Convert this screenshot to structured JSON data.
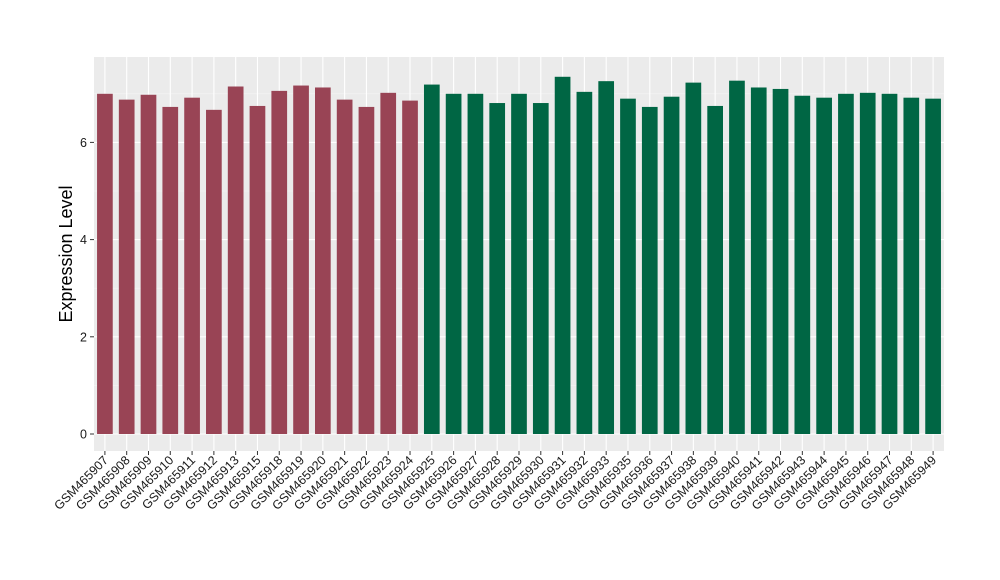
{
  "chart_data": {
    "type": "bar",
    "title": "",
    "xlabel": "",
    "ylabel": "Expression Level",
    "ylim": [
      0,
      7.7
    ],
    "yticks": [
      0,
      2,
      4,
      6
    ],
    "grid": true,
    "background": "#ebebeb",
    "gridline_color": "#ffffff",
    "categories": [
      "GSM465907",
      "GSM465908",
      "GSM465909",
      "GSM465910",
      "GSM465911",
      "GSM465912",
      "GSM465913",
      "GSM465915",
      "GSM465918",
      "GSM465919",
      "GSM465920",
      "GSM465921",
      "GSM465922",
      "GSM465923",
      "GSM465924",
      "GSM465925",
      "GSM465926",
      "GSM465927",
      "GSM465928",
      "GSM465929",
      "GSM465930",
      "GSM465931",
      "GSM465932",
      "GSM465933",
      "GSM465935",
      "GSM465936",
      "GSM465937",
      "GSM465938",
      "GSM465939",
      "GSM465940",
      "GSM465941",
      "GSM465942",
      "GSM465943",
      "GSM465944",
      "GSM465945",
      "GSM465946",
      "GSM465947",
      "GSM465948",
      "GSM465949"
    ],
    "values": [
      7.0,
      6.88,
      6.98,
      6.73,
      6.92,
      6.67,
      7.15,
      6.75,
      7.06,
      7.17,
      7.13,
      6.88,
      6.73,
      7.02,
      6.86,
      7.19,
      7.0,
      7.0,
      6.81,
      7.0,
      6.81,
      7.35,
      7.04,
      7.26,
      6.9,
      6.73,
      6.94,
      7.23,
      6.75,
      7.27,
      7.13,
      7.1,
      6.96,
      6.92,
      7.0,
      7.02,
      7.0,
      6.92,
      6.9
    ],
    "bar_colors": [
      "#994455",
      "#994455",
      "#994455",
      "#994455",
      "#994455",
      "#994455",
      "#994455",
      "#994455",
      "#994455",
      "#994455",
      "#994455",
      "#994455",
      "#994455",
      "#994455",
      "#994455",
      "#006644",
      "#006644",
      "#006644",
      "#006644",
      "#006644",
      "#006644",
      "#006644",
      "#006644",
      "#006644",
      "#006644",
      "#006644",
      "#006644",
      "#006644",
      "#006644",
      "#006644",
      "#006644",
      "#006644",
      "#006644",
      "#006644",
      "#006644",
      "#006644",
      "#006644",
      "#006644",
      "#006644"
    ]
  }
}
